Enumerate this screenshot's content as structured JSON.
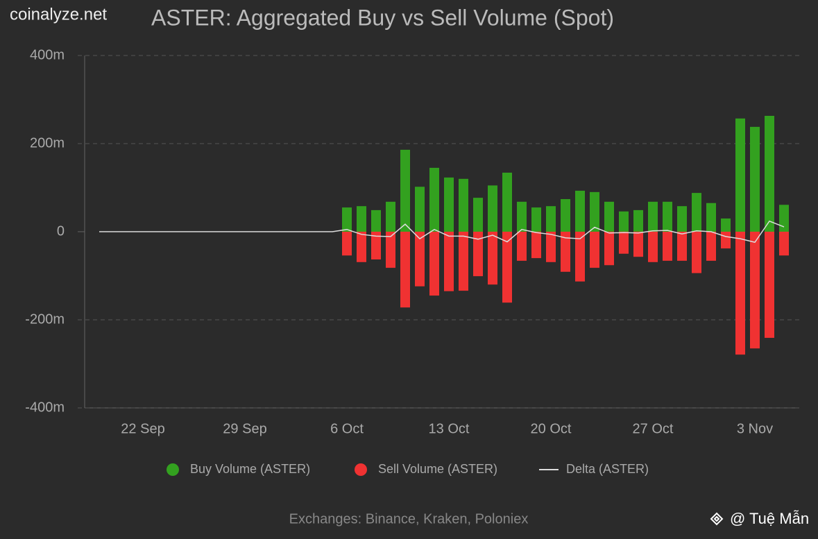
{
  "brand": "coinalyze.net",
  "watermark": "@ Tuệ Mẫn",
  "chart_data": {
    "type": "bar",
    "title": "ASTER: Aggregated Buy vs Sell Volume (Spot)",
    "footnote": "Exchanges: Binance, Kraken, Poloniex",
    "categories": [
      null,
      null,
      null,
      "22 Sep",
      null,
      null,
      null,
      null,
      null,
      null,
      "29 Sep",
      null,
      null,
      null,
      null,
      null,
      null,
      "6 Oct",
      null,
      null,
      null,
      null,
      null,
      null,
      "13 Oct",
      null,
      null,
      null,
      null,
      null,
      null,
      "20 Oct",
      null,
      null,
      null,
      null,
      null,
      null,
      "27 Oct",
      null,
      null,
      null,
      null,
      null,
      null,
      "3 Nov",
      null,
      null
    ],
    "ylim": [
      -400,
      400
    ],
    "yticks": [
      {
        "value": -400,
        "label": "-400m"
      },
      {
        "value": -200,
        "label": "-200m"
      },
      0,
      {
        "value": 200,
        "label": "200m"
      },
      {
        "value": 400,
        "label": "400m"
      }
    ],
    "grid": true,
    "legend": "bottom",
    "series": [
      {
        "name": "Buy Volume (ASTER)",
        "type": "bar",
        "color": "#33a11f",
        "values": [
          null,
          null,
          null,
          null,
          null,
          null,
          null,
          null,
          null,
          null,
          null,
          null,
          null,
          null,
          null,
          null,
          null,
          55,
          58,
          49,
          68,
          186,
          102,
          145,
          123,
          120,
          77,
          105,
          134,
          68,
          55,
          58,
          74,
          93,
          90,
          68,
          46,
          49,
          68,
          68,
          58,
          88,
          65,
          30,
          257,
          238,
          263,
          61
        ]
      },
      {
        "name": "Sell Volume (ASTER)",
        "type": "bar",
        "color": "#f03232",
        "values": [
          null,
          null,
          null,
          null,
          null,
          null,
          null,
          null,
          null,
          null,
          null,
          null,
          null,
          null,
          null,
          null,
          null,
          -54,
          -69,
          -63,
          -82,
          -172,
          -124,
          -145,
          -135,
          -134,
          -101,
          -120,
          -161,
          -66,
          -60,
          -69,
          -91,
          -113,
          -82,
          -76,
          -50,
          -57,
          -69,
          -66,
          -66,
          -94,
          -66,
          -38,
          -279,
          -265,
          -241,
          -54
        ]
      },
      {
        "name": "Delta (ASTER)",
        "type": "line",
        "color": "#dddddd",
        "values": [
          0,
          0,
          0,
          0,
          0,
          0,
          0,
          0,
          0,
          0,
          0,
          0,
          0,
          0,
          0,
          0,
          0,
          5,
          -6,
          -10,
          -11,
          17,
          -16,
          5,
          -10,
          -10,
          -17,
          -8,
          -23,
          5,
          -2,
          -6,
          -14,
          -16,
          10,
          -3,
          -2,
          -3,
          2,
          3,
          -5,
          2,
          0,
          -11,
          -16,
          -24,
          24,
          11
        ]
      }
    ]
  }
}
